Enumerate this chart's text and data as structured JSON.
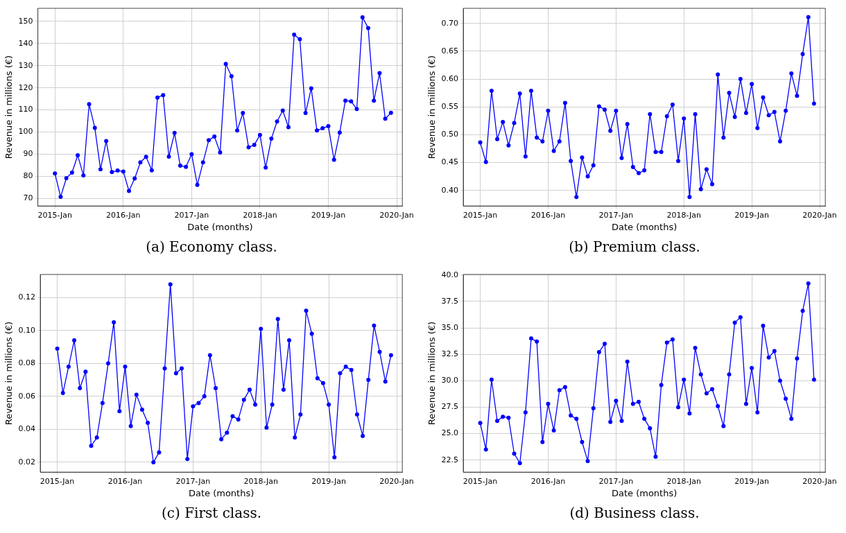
{
  "chart_data": [
    {
      "type": "line",
      "title": "(a) Economy class.",
      "xlabel": "Date (months)",
      "ylabel": "Revenue in millions (€)",
      "grid": true,
      "marker": "circle",
      "x": [
        "2015-01",
        "2015-02",
        "2015-03",
        "2015-04",
        "2015-05",
        "2015-06",
        "2015-07",
        "2015-08",
        "2015-09",
        "2015-10",
        "2015-11",
        "2015-12",
        "2016-01",
        "2016-02",
        "2016-03",
        "2016-04",
        "2016-05",
        "2016-06",
        "2016-07",
        "2016-08",
        "2016-09",
        "2016-10",
        "2016-11",
        "2016-12",
        "2017-01",
        "2017-02",
        "2017-03",
        "2017-04",
        "2017-05",
        "2017-06",
        "2017-07",
        "2017-08",
        "2017-09",
        "2017-10",
        "2017-11",
        "2017-12",
        "2018-01",
        "2018-02",
        "2018-03",
        "2018-04",
        "2018-05",
        "2018-06",
        "2018-07",
        "2018-08",
        "2018-09",
        "2018-10",
        "2018-11",
        "2018-12",
        "2019-01",
        "2019-02",
        "2019-03",
        "2019-04",
        "2019-05",
        "2019-06",
        "2019-07",
        "2019-08",
        "2019-09",
        "2019-10",
        "2019-11",
        "2019-12"
      ],
      "series": [
        {
          "color": "#0000ff",
          "values": [
            81.3,
            70.7,
            79.2,
            81.7,
            89.5,
            80.4,
            112.6,
            101.9,
            83.2,
            95.9,
            81.9,
            82.6,
            82.2,
            73.4,
            79.0,
            86.3,
            88.8,
            82.7,
            115.6,
            116.7,
            88.9,
            99.6,
            84.8,
            84.3,
            90.0,
            76.1,
            86.3,
            96.3,
            98.0,
            90.8,
            130.8,
            125.2,
            100.7,
            108.6,
            93.1,
            94.2,
            98.7,
            84.0,
            97.0,
            104.8,
            109.7,
            102.2,
            144.0,
            142.0,
            108.6,
            119.7,
            100.7,
            101.7,
            102.7,
            87.5,
            99.8,
            114.2,
            113.9,
            110.4,
            151.8,
            147.0,
            114.2,
            126.6,
            106.0,
            108.7
          ]
        }
      ],
      "xlim": [
        "2014-10",
        "2020-02"
      ],
      "ylim": [
        66.6,
        155.9
      ],
      "xticks": [
        {
          "value": "2015-01",
          "label": "2015-Jan"
        },
        {
          "value": "2016-01",
          "label": "2016-Jan"
        },
        {
          "value": "2017-01",
          "label": "2017-Jan"
        },
        {
          "value": "2018-01",
          "label": "2018-Jan"
        },
        {
          "value": "2019-01",
          "label": "2019-Jan"
        },
        {
          "value": "2020-01",
          "label": "2020-Jan"
        }
      ],
      "yticks": [
        70,
        80,
        90,
        100,
        110,
        120,
        130,
        140,
        150
      ]
    },
    {
      "type": "line",
      "title": "(b) Premium class.",
      "xlabel": "Date (months)",
      "ylabel": "Revenue in millions (€)",
      "grid": true,
      "marker": "circle",
      "x": [
        "2015-01",
        "2015-02",
        "2015-03",
        "2015-04",
        "2015-05",
        "2015-06",
        "2015-07",
        "2015-08",
        "2015-09",
        "2015-10",
        "2015-11",
        "2015-12",
        "2016-01",
        "2016-02",
        "2016-03",
        "2016-04",
        "2016-05",
        "2016-06",
        "2016-07",
        "2016-08",
        "2016-09",
        "2016-10",
        "2016-11",
        "2016-12",
        "2017-01",
        "2017-02",
        "2017-03",
        "2017-04",
        "2017-05",
        "2017-06",
        "2017-07",
        "2017-08",
        "2017-09",
        "2017-10",
        "2017-11",
        "2017-12",
        "2018-01",
        "2018-02",
        "2018-03",
        "2018-04",
        "2018-05",
        "2018-06",
        "2018-07",
        "2018-08",
        "2018-09",
        "2018-10",
        "2018-11",
        "2018-12",
        "2019-01",
        "2019-02",
        "2019-03",
        "2019-04",
        "2019-05",
        "2019-06",
        "2019-07",
        "2019-08",
        "2019-09",
        "2019-10",
        "2019-11",
        "2019-12"
      ],
      "series": [
        {
          "color": "#0000ff",
          "values": [
            0.486,
            0.451,
            0.579,
            0.492,
            0.523,
            0.481,
            0.521,
            0.574,
            0.461,
            0.579,
            0.495,
            0.488,
            0.543,
            0.471,
            0.488,
            0.557,
            0.453,
            0.388,
            0.459,
            0.425,
            0.445,
            0.551,
            0.545,
            0.507,
            0.543,
            0.458,
            0.519,
            0.442,
            0.431,
            0.436,
            0.537,
            0.469,
            0.469,
            0.533,
            0.554,
            0.453,
            0.529,
            0.388,
            0.537,
            0.402,
            0.438,
            0.411,
            0.608,
            0.495,
            0.575,
            0.532,
            0.6,
            0.539,
            0.591,
            0.512,
            0.567,
            0.535,
            0.541,
            0.488,
            0.543,
            0.61,
            0.57,
            0.645,
            0.711,
            0.556
          ]
        }
      ],
      "xlim": [
        "2014-10",
        "2020-02"
      ],
      "ylim": [
        0.372,
        0.727
      ],
      "xticks": [
        {
          "value": "2015-01",
          "label": "2015-Jan"
        },
        {
          "value": "2016-01",
          "label": "2016-Jan"
        },
        {
          "value": "2017-01",
          "label": "2017-Jan"
        },
        {
          "value": "2018-01",
          "label": "2018-Jan"
        },
        {
          "value": "2019-01",
          "label": "2019-Jan"
        },
        {
          "value": "2020-01",
          "label": "2020-Jan"
        }
      ],
      "yticks": [
        {
          "value": 0.4,
          "label": "0.40"
        },
        {
          "value": 0.45,
          "label": "0.45"
        },
        {
          "value": 0.5,
          "label": "0.50"
        },
        {
          "value": 0.55,
          "label": "0.55"
        },
        {
          "value": 0.6,
          "label": "0.60"
        },
        {
          "value": 0.65,
          "label": "0.65"
        },
        {
          "value": 0.7,
          "label": "0.70"
        }
      ]
    },
    {
      "type": "line",
      "title": "(c) First class.",
      "xlabel": "Date (months)",
      "ylabel": "Revenue in millions (€)",
      "grid": true,
      "marker": "circle",
      "x": [
        "2015-01",
        "2015-02",
        "2015-03",
        "2015-04",
        "2015-05",
        "2015-06",
        "2015-07",
        "2015-08",
        "2015-09",
        "2015-10",
        "2015-11",
        "2015-12",
        "2016-01",
        "2016-02",
        "2016-03",
        "2016-04",
        "2016-05",
        "2016-06",
        "2016-07",
        "2016-08",
        "2016-09",
        "2016-10",
        "2016-11",
        "2016-12",
        "2017-01",
        "2017-02",
        "2017-03",
        "2017-04",
        "2017-05",
        "2017-06",
        "2017-07",
        "2017-08",
        "2017-09",
        "2017-10",
        "2017-11",
        "2017-12",
        "2018-01",
        "2018-02",
        "2018-03",
        "2018-04",
        "2018-05",
        "2018-06",
        "2018-07",
        "2018-08",
        "2018-09",
        "2018-10",
        "2018-11",
        "2018-12",
        "2019-01",
        "2019-02",
        "2019-03",
        "2019-04",
        "2019-05",
        "2019-06",
        "2019-07",
        "2019-08",
        "2019-09",
        "2019-10",
        "2019-11",
        "2019-12"
      ],
      "series": [
        {
          "color": "#0000ff",
          "values": [
            0.089,
            0.062,
            0.078,
            0.094,
            0.065,
            0.075,
            0.03,
            0.035,
            0.056,
            0.08,
            0.105,
            0.051,
            0.078,
            0.042,
            0.061,
            0.052,
            0.044,
            0.02,
            0.026,
            0.077,
            0.128,
            0.074,
            0.077,
            0.022,
            0.054,
            0.056,
            0.06,
            0.085,
            0.065,
            0.034,
            0.038,
            0.048,
            0.046,
            0.058,
            0.064,
            0.055,
            0.101,
            0.041,
            0.055,
            0.107,
            0.064,
            0.094,
            0.035,
            0.049,
            0.112,
            0.098,
            0.071,
            0.068,
            0.055,
            0.023,
            0.074,
            0.078,
            0.076,
            0.049,
            0.036,
            0.07,
            0.103,
            0.087,
            0.069,
            0.085
          ]
        }
      ],
      "xlim": [
        "2014-10",
        "2020-02"
      ],
      "ylim": [
        0.014,
        0.134
      ],
      "xticks": [
        {
          "value": "2015-01",
          "label": "2015-Jan"
        },
        {
          "value": "2016-01",
          "label": "2016-Jan"
        },
        {
          "value": "2017-01",
          "label": "2017-Jan"
        },
        {
          "value": "2018-01",
          "label": "2018-Jan"
        },
        {
          "value": "2019-01",
          "label": "2019-Jan"
        },
        {
          "value": "2020-01",
          "label": "2020-Jan"
        }
      ],
      "yticks": [
        {
          "value": 0.02,
          "label": "0.02"
        },
        {
          "value": 0.04,
          "label": "0.04"
        },
        {
          "value": 0.06,
          "label": "0.06"
        },
        {
          "value": 0.08,
          "label": "0.08"
        },
        {
          "value": 0.1,
          "label": "0.10"
        },
        {
          "value": 0.12,
          "label": "0.12"
        }
      ]
    },
    {
      "type": "line",
      "title": "(d) Business class.",
      "xlabel": "Date (months)",
      "ylabel": "Revenue in millions (€)",
      "grid": true,
      "marker": "circle",
      "x": [
        "2015-01",
        "2015-02",
        "2015-03",
        "2015-04",
        "2015-05",
        "2015-06",
        "2015-07",
        "2015-08",
        "2015-09",
        "2015-10",
        "2015-11",
        "2015-12",
        "2016-01",
        "2016-02",
        "2016-03",
        "2016-04",
        "2016-05",
        "2016-06",
        "2016-07",
        "2016-08",
        "2016-09",
        "2016-10",
        "2016-11",
        "2016-12",
        "2017-01",
        "2017-02",
        "2017-03",
        "2017-04",
        "2017-05",
        "2017-06",
        "2017-07",
        "2017-08",
        "2017-09",
        "2017-10",
        "2017-11",
        "2017-12",
        "2018-01",
        "2018-02",
        "2018-03",
        "2018-04",
        "2018-05",
        "2018-06",
        "2018-07",
        "2018-08",
        "2018-09",
        "2018-10",
        "2018-11",
        "2018-12",
        "2019-01",
        "2019-02",
        "2019-03",
        "2019-04",
        "2019-05",
        "2019-06",
        "2019-07",
        "2019-08",
        "2019-09",
        "2019-10",
        "2019-11",
        "2019-12"
      ],
      "series": [
        {
          "color": "#0000ff",
          "values": [
            26.0,
            23.5,
            30.1,
            26.2,
            26.6,
            26.5,
            23.1,
            22.2,
            27.0,
            34.0,
            33.7,
            24.2,
            27.8,
            25.3,
            29.1,
            29.4,
            26.7,
            26.4,
            24.2,
            22.4,
            27.4,
            32.7,
            33.5,
            26.1,
            28.1,
            26.2,
            31.8,
            27.8,
            28.0,
            26.4,
            25.5,
            22.8,
            29.6,
            33.6,
            33.9,
            27.5,
            30.1,
            26.9,
            33.1,
            30.6,
            28.8,
            29.2,
            27.6,
            25.7,
            30.6,
            35.5,
            36.0,
            27.8,
            31.2,
            27.0,
            35.2,
            32.2,
            32.8,
            30.0,
            28.3,
            26.4,
            32.1,
            36.6,
            39.2,
            30.1
          ]
        }
      ],
      "xlim": [
        "2014-10",
        "2020-02"
      ],
      "ylim": [
        21.35,
        40.05
      ],
      "xticks": [
        {
          "value": "2015-01",
          "label": "2015-Jan"
        },
        {
          "value": "2016-01",
          "label": "2016-Jan"
        },
        {
          "value": "2017-01",
          "label": "2017-Jan"
        },
        {
          "value": "2018-01",
          "label": "2018-Jan"
        },
        {
          "value": "2019-01",
          "label": "2019-Jan"
        },
        {
          "value": "2020-01",
          "label": "2020-Jan"
        }
      ],
      "yticks": [
        {
          "value": 22.5,
          "label": "22.5"
        },
        {
          "value": 25,
          "label": "25.0"
        },
        {
          "value": 27.5,
          "label": "27.5"
        },
        {
          "value": 30,
          "label": "30.0"
        },
        {
          "value": 32.5,
          "label": "32.5"
        },
        {
          "value": 35,
          "label": "35.0"
        },
        {
          "value": 37.5,
          "label": "37.5"
        },
        {
          "value": 40,
          "label": "40.0"
        }
      ]
    }
  ]
}
